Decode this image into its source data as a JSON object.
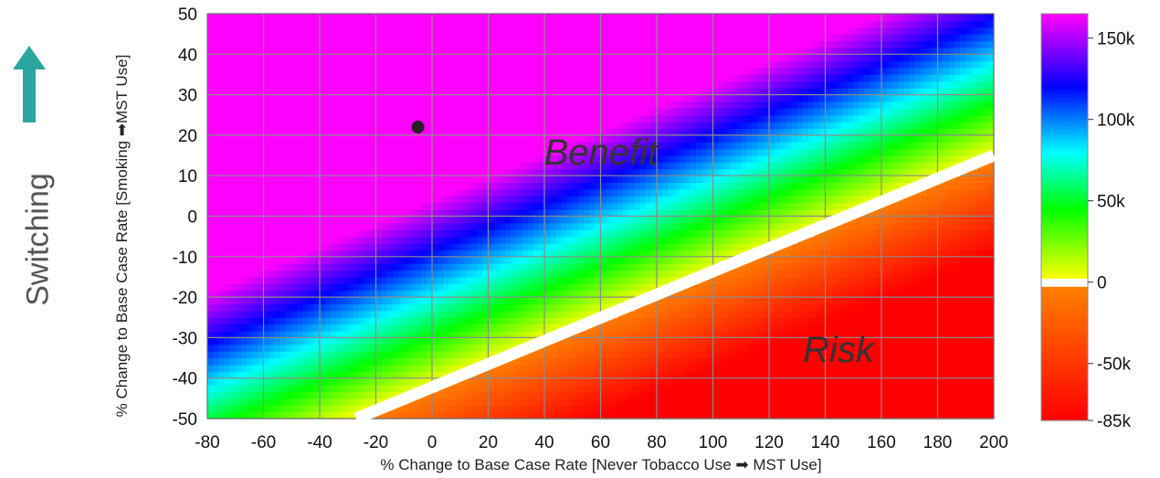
{
  "side_label": {
    "text": "Switching",
    "arrow_color": "#2aa7a0",
    "icon": "up-arrow-icon"
  },
  "regions": {
    "benefit": "Benefit",
    "risk": "Risk"
  },
  "chart_data": {
    "type": "heatmap",
    "xlabel": "% Change to Base Case Rate [Never Tobacco Use ➡ MST Use]",
    "ylabel": "% Change to Base Case Rate [Smoking ➡MST Use]",
    "xlim": [
      -80,
      200
    ],
    "ylim": [
      -50,
      50
    ],
    "x_ticks": [
      -80,
      -60,
      -40,
      -20,
      0,
      20,
      40,
      60,
      80,
      100,
      120,
      140,
      160,
      180,
      200
    ],
    "y_ticks": [
      -50,
      -40,
      -30,
      -20,
      -10,
      0,
      10,
      20,
      30,
      40,
      50
    ],
    "grid": true,
    "zero_contour": [
      [
        -27,
        -50
      ],
      [
        200,
        15
      ]
    ],
    "point": {
      "x": -5,
      "y": 22
    },
    "colorbar": {
      "range": [
        -85000,
        165000
      ],
      "ticks": [
        150000,
        100000,
        50000,
        0,
        -50000,
        -85000
      ],
      "tick_labels": [
        "150k",
        "100k",
        "50k",
        "0",
        "-50k",
        "-85k"
      ],
      "colors": [
        "#ff00ff",
        "#0000ff",
        "#00ffff",
        "#00ff00",
        "#ffff00",
        "#ff8000",
        "#ff0000"
      ]
    }
  }
}
